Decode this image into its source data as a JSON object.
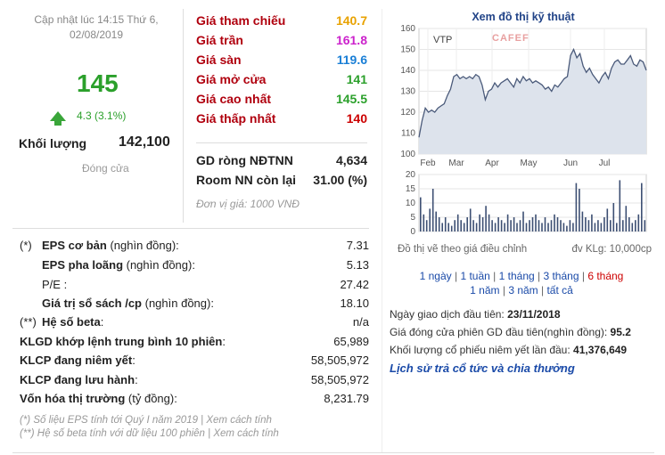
{
  "header": {
    "updated": "Cập nhật lúc 14:15 Thứ 6, 02/08/2019",
    "price": "145",
    "change": "4.3 (3.1%)",
    "volume_label": "Khối lượng",
    "volume_value": "142,100",
    "status": "Đóng cửa"
  },
  "prices": [
    {
      "label": "Giá tham chiếu",
      "value": "140.7",
      "color": "#e8a200"
    },
    {
      "label": "Giá trần",
      "value": "161.8",
      "color": "#cc22cc"
    },
    {
      "label": "Giá sàn",
      "value": "119.6",
      "color": "#1a7fd6"
    },
    {
      "label": "Giá mở cửa",
      "value": "141",
      "color": "#2ba02b"
    },
    {
      "label": "Giá cao nhất",
      "value": "145.5",
      "color": "#2ba02b"
    },
    {
      "label": "Giá thấp nhất",
      "value": "140",
      "color": "#cc0000"
    }
  ],
  "foreign": {
    "net_label": "GD ròng NĐTNN",
    "net_value": "4,634",
    "room_label": "Room NN còn lại",
    "room_value": "31.00 (%)",
    "unit": "Đơn vị giá: 1000 VNĐ"
  },
  "financials": [
    {
      "prefix": "(*)",
      "label": "EPS cơ bản",
      "suffix": " (nghìn đồng):",
      "value": "7.31",
      "indent": 0
    },
    {
      "prefix": "",
      "label": "EPS pha loãng",
      "suffix": " (nghìn đồng):",
      "value": "5.13",
      "indent": 1
    },
    {
      "prefix": "",
      "label": "P/E",
      "suffix": " :",
      "value": "27.42",
      "indent": 1
    },
    {
      "prefix": "",
      "label": "Giá trị sổ sách /cp",
      "suffix": " (nghìn đồng):",
      "value": "18.10",
      "indent": 1
    },
    {
      "prefix": "(**)",
      "label": "Hệ số beta",
      "suffix": ":",
      "value": "n/a",
      "indent": 0
    },
    {
      "prefix": "",
      "label": "KLGD khớp lệnh trung bình 10 phiên",
      "suffix": ":",
      "value": "65,989",
      "indent": 0
    },
    {
      "prefix": "",
      "label": "KLCP đang niêm yết",
      "suffix": ":",
      "value": "58,505,972",
      "indent": 0
    },
    {
      "prefix": "",
      "label": "KLCP đang lưu hành",
      "suffix": ":",
      "value": "58,505,972",
      "indent": 0
    },
    {
      "prefix": "",
      "label": "Vốn hóa thị trường",
      "suffix": " (tỷ đồng):",
      "value": "8,231.79",
      "indent": 0
    }
  ],
  "notes": [
    "(*) Số liệu EPS tính tới Quý I năm 2019 | Xem cách tính",
    "(**) Hệ số beta tính với dữ liệu 100 phiên | Xem cách tính"
  ],
  "chart": {
    "title": "Xem đồ thị kỹ thuật",
    "ticker": "VTP",
    "watermark": "CAFEF",
    "note_left": "Đồ thị vẽ theo giá điều chỉnh",
    "note_right": "đv KLg: 10,000cp",
    "line_color": "#4a5a7a",
    "area_color": "#dde3ec"
  },
  "chart_data": {
    "type": "line",
    "x_ticks": [
      "Feb",
      "Mar",
      "Apr",
      "May",
      "Jun",
      "Jul"
    ],
    "price_ticks": [
      100,
      110,
      120,
      130,
      140,
      150,
      160
    ],
    "price_ylim": [
      100,
      160
    ],
    "prices": [
      108,
      116,
      122,
      120,
      121,
      120,
      122,
      123,
      124,
      128,
      131,
      137,
      138,
      136,
      137,
      136,
      137,
      136,
      138,
      137,
      133,
      126,
      130,
      131,
      134,
      132,
      134,
      135,
      136,
      134,
      132,
      136,
      134,
      137,
      135,
      136,
      134,
      135,
      134,
      133,
      131,
      132,
      130,
      133,
      132,
      134,
      136,
      137,
      147,
      150,
      146,
      148,
      142,
      139,
      141,
      138,
      136,
      134,
      137,
      139,
      136,
      141,
      144,
      145,
      143,
      143,
      145,
      147,
      143,
      142,
      145,
      144,
      140
    ],
    "volume_ticks": [
      0,
      5,
      10,
      15,
      20
    ],
    "volume_ylim": [
      0,
      20
    ],
    "volumes": [
      12,
      6,
      4,
      8,
      15,
      7,
      5,
      3,
      5,
      3,
      2,
      4,
      6,
      4,
      3,
      5,
      8,
      4,
      3,
      6,
      5,
      9,
      6,
      4,
      3,
      5,
      4,
      3,
      6,
      4,
      5,
      3,
      4,
      7,
      3,
      4,
      5,
      6,
      4,
      3,
      5,
      3,
      4,
      6,
      5,
      4,
      3,
      2,
      4,
      3,
      17,
      15,
      7,
      5,
      4,
      6,
      3,
      4,
      3,
      5,
      8,
      4,
      10,
      3,
      18,
      4,
      9,
      5,
      3,
      4,
      6,
      17,
      4
    ]
  },
  "timeframes": {
    "line1": [
      "1 ngày",
      "1 tuần",
      "1 tháng",
      "3 tháng",
      "6 tháng"
    ],
    "line2": [
      "1 năm",
      "3 năm",
      "tất cả"
    ],
    "active": "6 tháng"
  },
  "info": {
    "first_day_label": "Ngày giao dịch đầu tiên:",
    "first_day_value": "23/11/2018",
    "first_close_label": "Giá đóng cửa phiên GD đầu tiên(nghìn đồng):",
    "first_close_value": "95.2",
    "first_volume_label": "Khối lượng cổ phiếu niêm yết lần đầu:",
    "first_volume_value": "41,376,649",
    "history_link": "Lịch sử trả cổ tức và chia thưởng"
  }
}
